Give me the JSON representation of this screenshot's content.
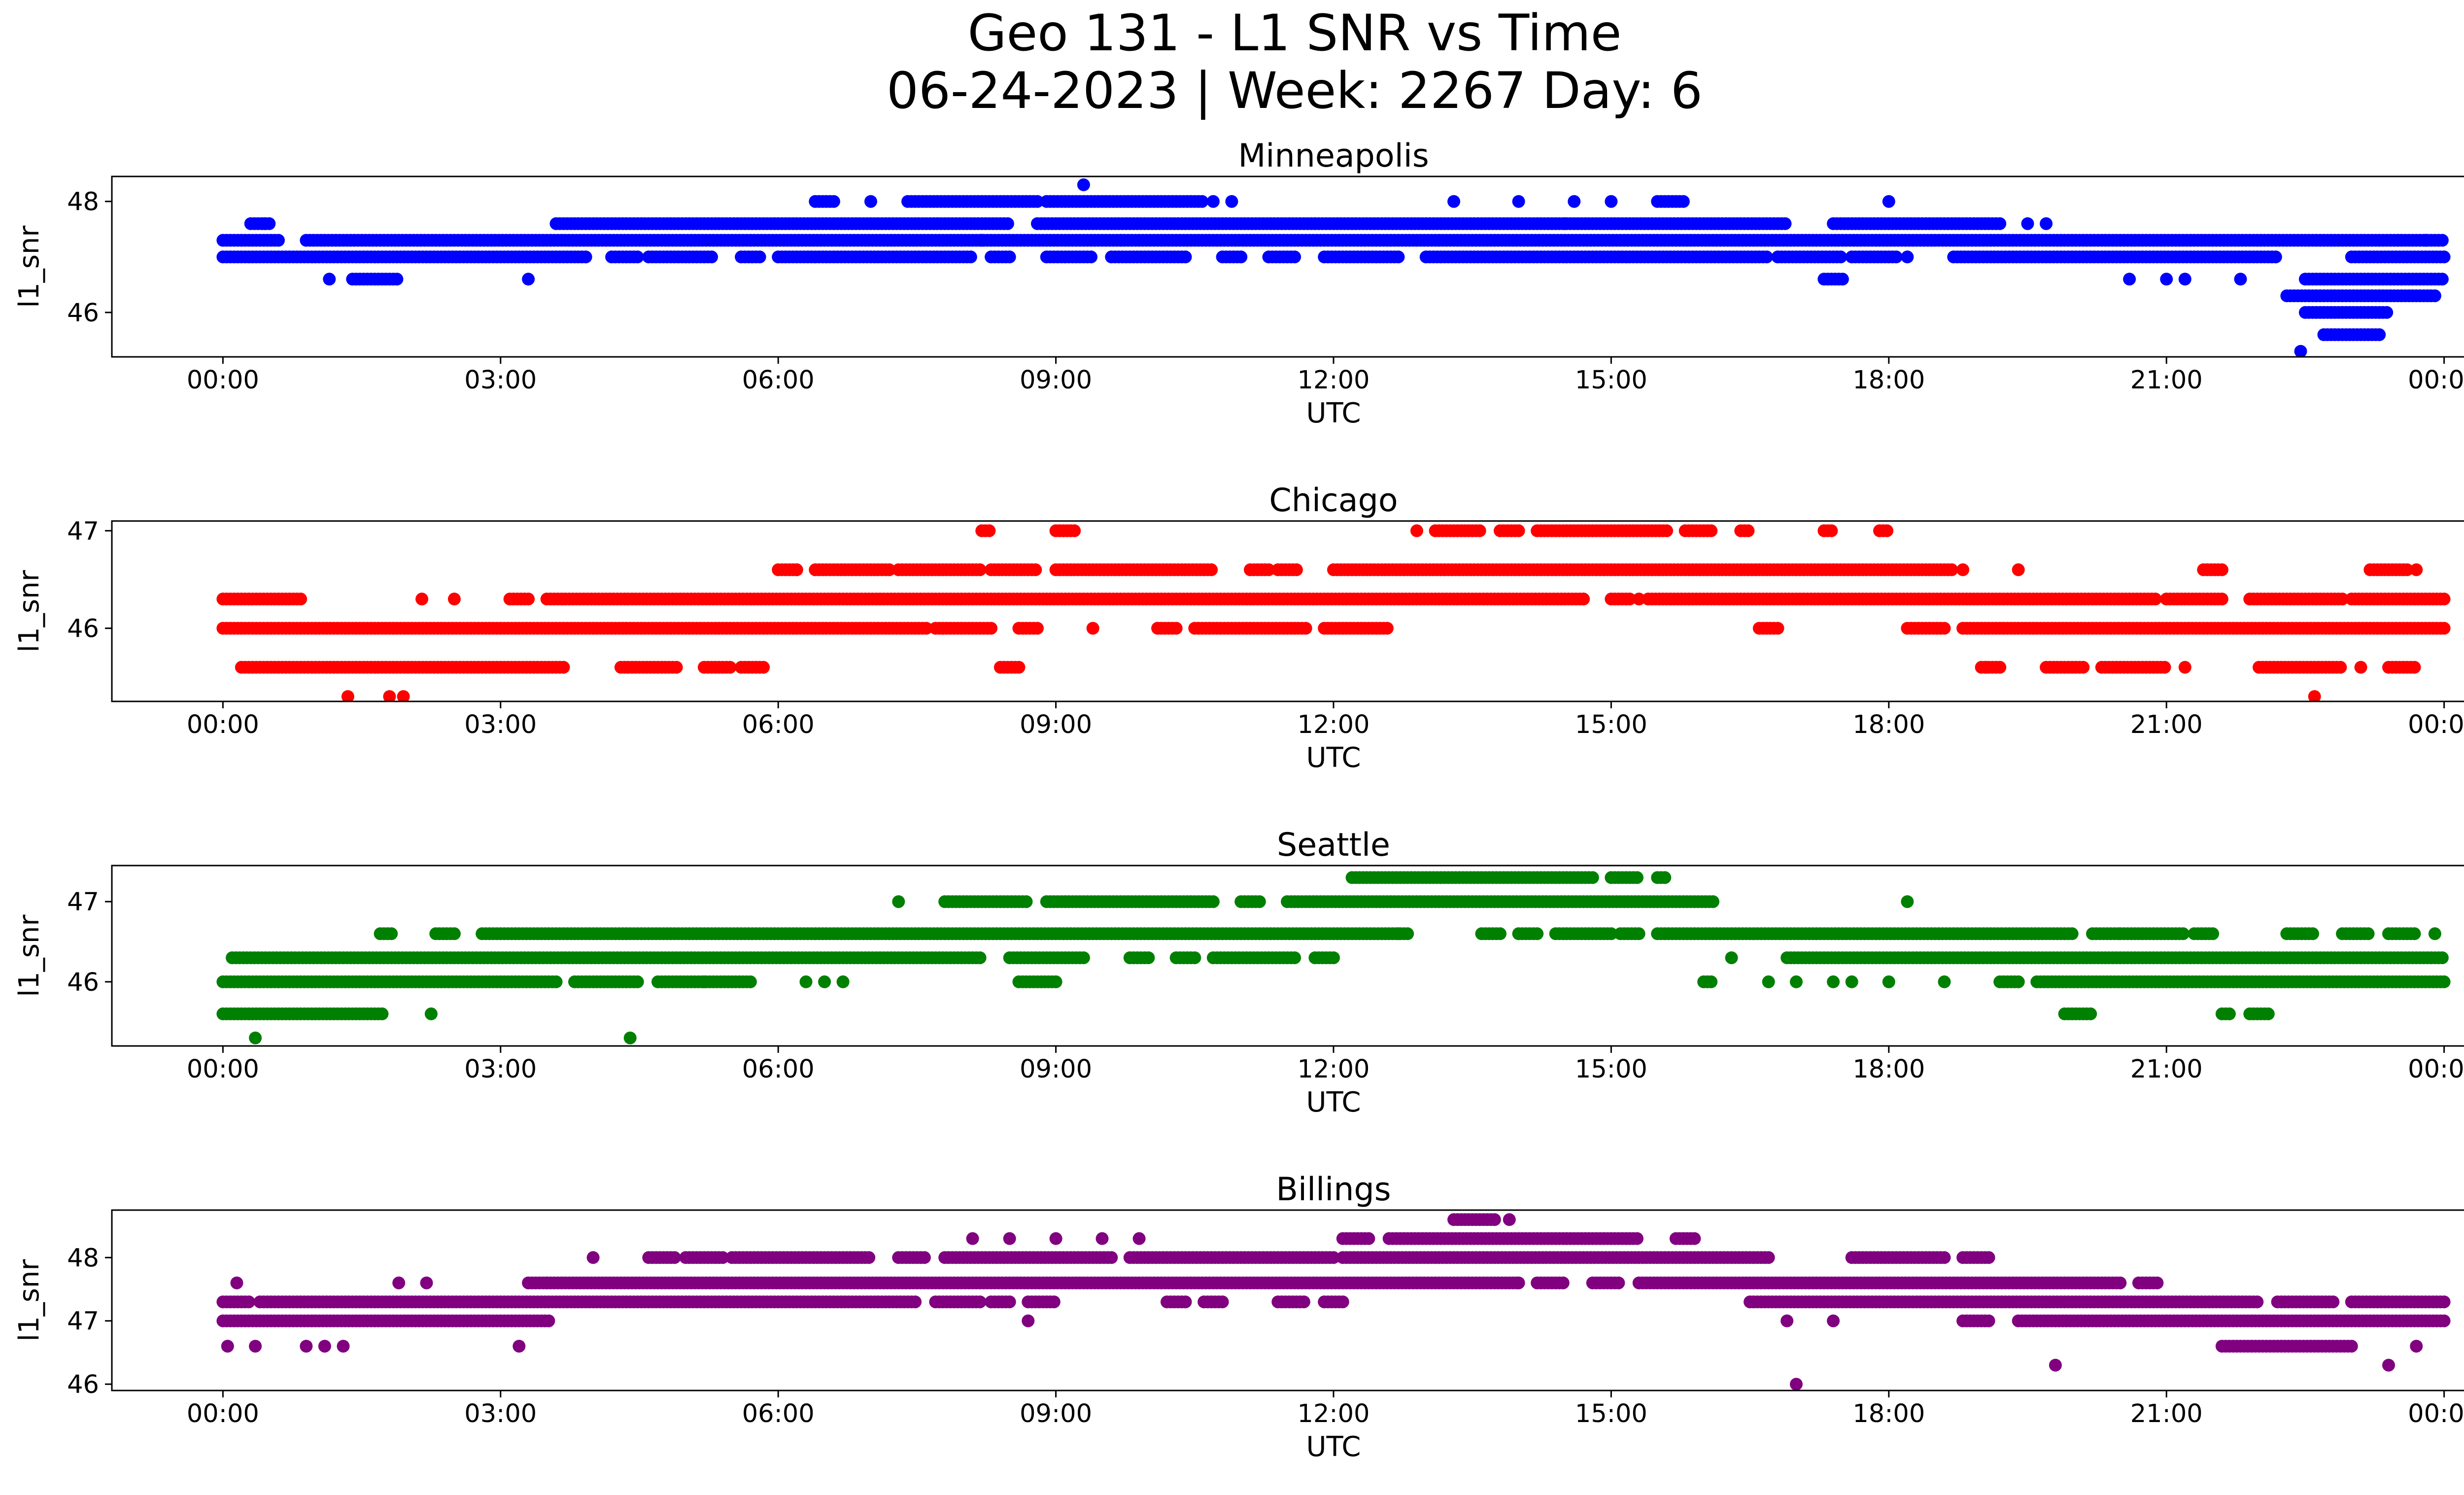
{
  "figure": {
    "title_line1": "Geo 131 - L1 SNR vs Time",
    "title_line2": "06-24-2023 | Week: 2267 Day: 6"
  },
  "chart_data": [
    {
      "type": "scatter",
      "title": "Minneapolis",
      "xlabel": "UTC",
      "ylabel": "l1_snr",
      "color": "#0000ff",
      "xlim_hours": [
        -1.2,
        25.2
      ],
      "ylim": [
        45.2,
        48.45
      ],
      "x_ticks": [
        "00:00",
        "03:00",
        "06:00",
        "09:00",
        "12:00",
        "15:00",
        "18:00",
        "21:00",
        "00:00"
      ],
      "y_ticks": [
        46,
        48
      ],
      "bands": [
        {
          "y": 47.0,
          "segments": [
            [
              0.0,
              3.95
            ],
            [
              4.2,
              4.5
            ],
            [
              4.6,
              5.3
            ],
            [
              5.6,
              5.8
            ],
            [
              6.0,
              8.1
            ],
            [
              8.3,
              8.5
            ],
            [
              8.9,
              9.4
            ],
            [
              9.6,
              10.4
            ],
            [
              10.8,
              11.0
            ],
            [
              11.3,
              11.6
            ],
            [
              11.9,
              12.7
            ],
            [
              13.0,
              16.7
            ],
            [
              16.8,
              17.5
            ],
            [
              17.6,
              18.1
            ],
            [
              18.7,
              22.2
            ],
            [
              23.0,
              24.0
            ]
          ]
        },
        {
          "y": 47.3,
          "segments": [
            [
              0.0,
              0.6
            ],
            [
              0.9,
              24.0
            ]
          ]
        },
        {
          "y": 47.6,
          "segments": [
            [
              0.3,
              0.5
            ],
            [
              3.6,
              8.5
            ],
            [
              8.8,
              16.9
            ],
            [
              17.4,
              19.2
            ]
          ]
        },
        {
          "y": 48.0,
          "segments": [
            [
              6.4,
              6.6
            ],
            [
              7.4,
              8.8
            ],
            [
              8.9,
              10.6
            ],
            [
              15.5,
              15.8
            ]
          ]
        },
        {
          "y": 46.6,
          "segments": [
            [
              1.4,
              1.9
            ],
            [
              17.3,
              17.5
            ],
            [
              22.5,
              24.0
            ]
          ]
        },
        {
          "y": 46.3,
          "segments": [
            [
              22.3,
              23.9
            ]
          ]
        },
        {
          "y": 46.0,
          "segments": [
            [
              22.5,
              23.4
            ]
          ]
        },
        {
          "y": 45.6,
          "segments": [
            [
              22.7,
              23.3
            ]
          ]
        }
      ],
      "points": [
        [
          0.45,
          47.6
        ],
        [
          1.15,
          46.6
        ],
        [
          3.3,
          46.6
        ],
        [
          9.3,
          48.3
        ],
        [
          7.0,
          48.0
        ],
        [
          10.9,
          48.0
        ],
        [
          10.7,
          48.0
        ],
        [
          13.3,
          48.0
        ],
        [
          14.0,
          48.0
        ],
        [
          14.6,
          48.0
        ],
        [
          15.0,
          48.0
        ],
        [
          18.0,
          48.0
        ],
        [
          18.2,
          47.0
        ],
        [
          19.5,
          47.6
        ],
        [
          19.7,
          47.6
        ],
        [
          20.6,
          46.6
        ],
        [
          21.0,
          46.6
        ],
        [
          21.2,
          46.6
        ],
        [
          21.8,
          46.6
        ],
        [
          22.45,
          45.3
        ],
        [
          23.8,
          47.3
        ],
        [
          23.5,
          47.3
        ],
        [
          14.5,
          47.6
        ],
        [
          8.2,
          47.3
        ],
        [
          9.7,
          47.3
        ]
      ]
    },
    {
      "type": "scatter",
      "title": "Chicago",
      "xlabel": "UTC",
      "ylabel": "l1_snr",
      "color": "#ff0000",
      "xlim_hours": [
        -1.2,
        25.2
      ],
      "ylim": [
        45.25,
        47.1
      ],
      "x_ticks": [
        "00:00",
        "03:00",
        "06:00",
        "09:00",
        "12:00",
        "15:00",
        "18:00",
        "21:00",
        "00:00"
      ],
      "y_ticks": [
        46,
        47
      ],
      "bands": [
        {
          "y": 46.0,
          "segments": [
            [
              0.0,
              7.6
            ],
            [
              7.7,
              8.3
            ],
            [
              8.6,
              8.8
            ],
            [
              10.1,
              10.3
            ],
            [
              10.5,
              11.7
            ],
            [
              11.9,
              12.6
            ],
            [
              16.6,
              16.8
            ],
            [
              18.2,
              18.6
            ],
            [
              18.8,
              24.0
            ]
          ]
        },
        {
          "y": 46.3,
          "segments": [
            [
              0.0,
              0.85
            ],
            [
              3.1,
              3.3
            ],
            [
              3.5,
              14.7
            ],
            [
              15.0,
              15.2
            ],
            [
              15.4,
              20.9
            ],
            [
              21.0,
              21.6
            ],
            [
              21.9,
              22.9
            ],
            [
              23.0,
              24.0
            ]
          ]
        },
        {
          "y": 45.6,
          "segments": [
            [
              0.2,
              3.7
            ],
            [
              4.3,
              4.9
            ],
            [
              5.2,
              5.5
            ],
            [
              5.6,
              5.85
            ],
            [
              8.4,
              8.6
            ],
            [
              19.0,
              19.2
            ],
            [
              19.7,
              20.1
            ],
            [
              20.3,
              21.0
            ],
            [
              22.0,
              22.9
            ],
            [
              23.4,
              23.7
            ]
          ]
        },
        {
          "y": 46.6,
          "segments": [
            [
              6.0,
              6.2
            ],
            [
              6.4,
              7.2
            ],
            [
              7.3,
              8.2
            ],
            [
              8.3,
              8.8
            ],
            [
              9.0,
              10.7
            ],
            [
              11.1,
              11.3
            ],
            [
              11.4,
              11.6
            ],
            [
              12.0,
              18.7
            ],
            [
              21.4,
              21.6
            ],
            [
              23.2,
              23.6
            ]
          ]
        },
        {
          "y": 47.0,
          "segments": [
            [
              8.2,
              8.3
            ],
            [
              9.0,
              9.2
            ],
            [
              13.1,
              13.6
            ],
            [
              13.8,
              14.0
            ],
            [
              14.2,
              15.6
            ],
            [
              15.8,
              16.1
            ],
            [
              16.4,
              16.5
            ],
            [
              17.3,
              17.4
            ],
            [
              17.9,
              18.0
            ]
          ]
        }
      ],
      "points": [
        [
          1.35,
          45.3
        ],
        [
          1.8,
          45.3
        ],
        [
          1.95,
          45.3
        ],
        [
          2.15,
          46.3
        ],
        [
          2.5,
          46.3
        ],
        [
          6.2,
          46.6
        ],
        [
          9.4,
          46.0
        ],
        [
          10.1,
          46.0
        ],
        [
          12.9,
          47.0
        ],
        [
          18.8,
          46.6
        ],
        [
          19.4,
          46.6
        ],
        [
          19.05,
          45.6
        ],
        [
          21.2,
          45.6
        ],
        [
          22.6,
          45.3
        ],
        [
          23.1,
          45.6
        ],
        [
          23.7,
          46.6
        ],
        [
          14.7,
          46.3
        ],
        [
          15.3,
          46.3
        ]
      ]
    },
    {
      "type": "scatter",
      "title": "Seattle",
      "xlabel": "UTC",
      "ylabel": "l1_snr",
      "color": "#008000",
      "xlim_hours": [
        -1.2,
        25.2
      ],
      "ylim": [
        45.2,
        47.45
      ],
      "x_ticks": [
        "00:00",
        "03:00",
        "06:00",
        "09:00",
        "12:00",
        "15:00",
        "18:00",
        "21:00",
        "00:00"
      ],
      "y_ticks": [
        46,
        47
      ],
      "bands": [
        {
          "y": 46.0,
          "segments": [
            [
              0.0,
              3.6
            ],
            [
              3.8,
              4.5
            ],
            [
              4.7,
              5.7
            ],
            [
              8.6,
              9.0
            ],
            [
              16.0,
              16.1
            ],
            [
              19.2,
              19.4
            ],
            [
              19.6,
              24.0
            ]
          ]
        },
        {
          "y": 46.3,
          "segments": [
            [
              0.1,
              8.2
            ],
            [
              8.5,
              9.3
            ],
            [
              9.8,
              10.0
            ],
            [
              10.3,
              10.5
            ],
            [
              10.7,
              11.6
            ],
            [
              11.8,
              12.0
            ],
            [
              16.9,
              24.0
            ]
          ]
        },
        {
          "y": 46.6,
          "segments": [
            [
              1.7,
              1.85
            ],
            [
              2.3,
              2.5
            ],
            [
              2.8,
              12.8
            ],
            [
              13.6,
              13.8
            ],
            [
              14.0,
              14.2
            ],
            [
              14.4,
              15.0
            ],
            [
              15.1,
              15.3
            ],
            [
              15.5,
              20.0
            ],
            [
              20.2,
              20.5
            ],
            [
              20.5,
              21.2
            ],
            [
              21.3,
              21.5
            ],
            [
              22.3,
              22.6
            ],
            [
              22.9,
              23.2
            ],
            [
              23.4,
              23.7
            ]
          ]
        },
        {
          "y": 47.0,
          "segments": [
            [
              7.8,
              8.7
            ],
            [
              8.9,
              10.7
            ],
            [
              11.0,
              11.2
            ],
            [
              11.5,
              16.1
            ]
          ]
        },
        {
          "y": 47.3,
          "segments": [
            [
              12.2,
              14.8
            ],
            [
              15.0,
              15.3
            ],
            [
              15.5,
              15.6
            ]
          ]
        },
        {
          "y": 45.6,
          "segments": [
            [
              0.0,
              1.75
            ],
            [
              19.9,
              20.2
            ],
            [
              21.6,
              21.7
            ],
            [
              21.9,
              22.1
            ]
          ]
        }
      ],
      "points": [
        [
          0.35,
          45.3
        ],
        [
          4.4,
          45.3
        ],
        [
          2.25,
          45.6
        ],
        [
          7.3,
          47.0
        ],
        [
          5.2,
          46.0
        ],
        [
          6.3,
          46.0
        ],
        [
          6.5,
          46.0
        ],
        [
          6.7,
          46.0
        ],
        [
          12.7,
          46.6
        ],
        [
          16.3,
          46.3
        ],
        [
          16.7,
          46.0
        ],
        [
          17.0,
          46.0
        ],
        [
          17.4,
          46.0
        ],
        [
          17.6,
          46.0
        ],
        [
          18.0,
          46.0
        ],
        [
          18.2,
          47.0
        ],
        [
          18.6,
          46.0
        ],
        [
          23.9,
          46.6
        ]
      ]
    },
    {
      "type": "scatter",
      "title": "Billings",
      "xlabel": "UTC",
      "ylabel": "l1_snr",
      "color": "#800080",
      "xlim_hours": [
        -1.2,
        25.2
      ],
      "ylim": [
        45.9,
        48.75
      ],
      "x_ticks": [
        "00:00",
        "03:00",
        "06:00",
        "09:00",
        "12:00",
        "15:00",
        "18:00",
        "21:00",
        "00:00"
      ],
      "y_ticks": [
        46,
        47,
        48
      ],
      "bands": [
        {
          "y": 47.0,
          "segments": [
            [
              0.0,
              3.55
            ],
            [
              18.8,
              19.1
            ],
            [
              19.4,
              24.0
            ]
          ]
        },
        {
          "y": 47.3,
          "segments": [
            [
              0.0,
              0.3
            ],
            [
              0.4,
              7.5
            ],
            [
              7.7,
              8.2
            ],
            [
              8.3,
              8.5
            ],
            [
              8.7,
              9.0
            ],
            [
              10.2,
              10.4
            ],
            [
              10.6,
              10.8
            ],
            [
              11.4,
              11.7
            ],
            [
              11.9,
              12.1
            ],
            [
              16.5,
              22.0
            ],
            [
              22.2,
              22.8
            ],
            [
              23.0,
              24.0
            ]
          ]
        },
        {
          "y": 47.6,
          "segments": [
            [
              3.3,
              3.5
            ],
            [
              3.5,
              14.0
            ],
            [
              14.2,
              14.5
            ],
            [
              14.8,
              15.1
            ],
            [
              15.3,
              20.5
            ],
            [
              20.7,
              20.9
            ]
          ]
        },
        {
          "y": 48.0,
          "segments": [
            [
              4.6,
              4.9
            ],
            [
              5.0,
              5.4
            ],
            [
              5.5,
              7.0
            ],
            [
              7.3,
              7.6
            ],
            [
              7.8,
              9.6
            ],
            [
              9.8,
              12.0
            ],
            [
              12.1,
              16.7
            ],
            [
              17.6,
              18.6
            ],
            [
              18.8,
              19.1
            ]
          ]
        },
        {
          "y": 48.3,
          "segments": [
            [
              12.1,
              12.4
            ],
            [
              12.6,
              15.3
            ],
            [
              15.7,
              15.9
            ]
          ]
        },
        {
          "y": 48.6,
          "segments": [
            [
              13.3,
              13.75
            ]
          ]
        },
        {
          "y": 46.6,
          "segments": [
            [
              21.6,
              23.0
            ]
          ]
        }
      ],
      "points": [
        [
          0.05,
          46.6
        ],
        [
          0.35,
          46.6
        ],
        [
          0.9,
          46.6
        ],
        [
          1.1,
          46.6
        ],
        [
          1.3,
          46.6
        ],
        [
          0.15,
          47.6
        ],
        [
          1.9,
          47.6
        ],
        [
          2.2,
          47.6
        ],
        [
          3.2,
          46.6
        ],
        [
          4.0,
          48.0
        ],
        [
          8.1,
          48.3
        ],
        [
          8.5,
          48.3
        ],
        [
          9.0,
          48.3
        ],
        [
          9.5,
          48.3
        ],
        [
          9.9,
          48.3
        ],
        [
          8.7,
          47.0
        ],
        [
          16.9,
          47.0
        ],
        [
          17.0,
          46.0
        ],
        [
          17.4,
          47.0
        ],
        [
          19.8,
          46.3
        ],
        [
          23.4,
          46.3
        ],
        [
          23.7,
          46.6
        ],
        [
          13.9,
          48.6
        ],
        [
          14.0,
          47.6
        ]
      ]
    }
  ]
}
